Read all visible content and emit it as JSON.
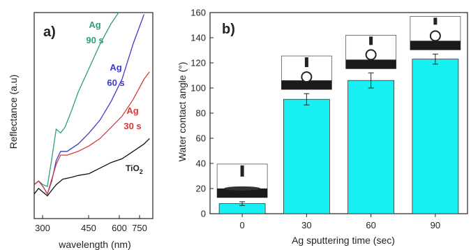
{
  "chart_data": [
    {
      "panel": "a)",
      "type": "line",
      "xlabel": "wavelength (nm)",
      "ylabel": "Reflectance (a.u)",
      "x_ticks": [
        "300",
        "450",
        "600",
        "750"
      ],
      "xlim": [
        250,
        790
      ],
      "ylim": [
        0,
        1
      ],
      "grid": false,
      "series": [
        {
          "name": "Ag 90 s",
          "label_lines": [
            "Ag",
            "90 s"
          ],
          "color": "#2e9e7f",
          "x": [
            250,
            270,
            290,
            310,
            330,
            350,
            370,
            390,
            420,
            450,
            500,
            550,
            600,
            640
          ],
          "y": [
            0.1,
            0.12,
            0.1,
            0.09,
            0.24,
            0.4,
            0.38,
            0.41,
            0.5,
            0.6,
            0.73,
            0.86,
            0.97,
            1.04
          ]
        },
        {
          "name": "Ag 60 s",
          "label_lines": [
            "Ag",
            "60 s"
          ],
          "color": "#3a3ac8",
          "x": [
            250,
            270,
            290,
            310,
            330,
            350,
            370,
            400,
            450,
            500,
            550,
            600,
            650,
            700,
            750
          ],
          "y": [
            0.1,
            0.12,
            0.09,
            0.05,
            0.12,
            0.23,
            0.28,
            0.28,
            0.32,
            0.38,
            0.45,
            0.55,
            0.67,
            0.86,
            1.02
          ]
        },
        {
          "name": "Ag 30 s",
          "label_lines": [
            "Ag",
            "30 s"
          ],
          "color": "#d63a3a",
          "x": [
            250,
            270,
            290,
            310,
            330,
            350,
            370,
            400,
            450,
            500,
            550,
            600,
            650,
            700,
            750,
            775
          ],
          "y": [
            0.1,
            0.12,
            0.09,
            0.05,
            0.13,
            0.21,
            0.26,
            0.26,
            0.28,
            0.31,
            0.35,
            0.41,
            0.47,
            0.56,
            0.67,
            0.71
          ]
        },
        {
          "name": "TiO2",
          "label_lines": [
            "TiO",
            "2"
          ],
          "color": "#111111",
          "x": [
            250,
            270,
            290,
            310,
            330,
            350,
            380,
            420,
            450,
            500,
            550,
            600,
            650,
            700,
            750,
            775
          ],
          "y": [
            0.05,
            0.08,
            0.06,
            0.04,
            0.07,
            0.1,
            0.13,
            0.14,
            0.15,
            0.16,
            0.19,
            0.22,
            0.24,
            0.28,
            0.32,
            0.35
          ]
        }
      ]
    },
    {
      "panel": "b)",
      "type": "bar",
      "xlabel": "Ag sputtering time (sec)",
      "ylabel": "Water contact angle (°)",
      "categories": [
        "0",
        "30",
        "60",
        "90"
      ],
      "values": [
        8,
        91,
        106,
        123
      ],
      "errors": [
        1.5,
        4.5,
        6,
        4
      ],
      "ylim": [
        0,
        160
      ],
      "y_ticks": [
        0,
        20,
        40,
        60,
        80,
        100,
        120,
        140,
        160
      ],
      "bar_color": "#16f0f0",
      "grid": false
    }
  ]
}
